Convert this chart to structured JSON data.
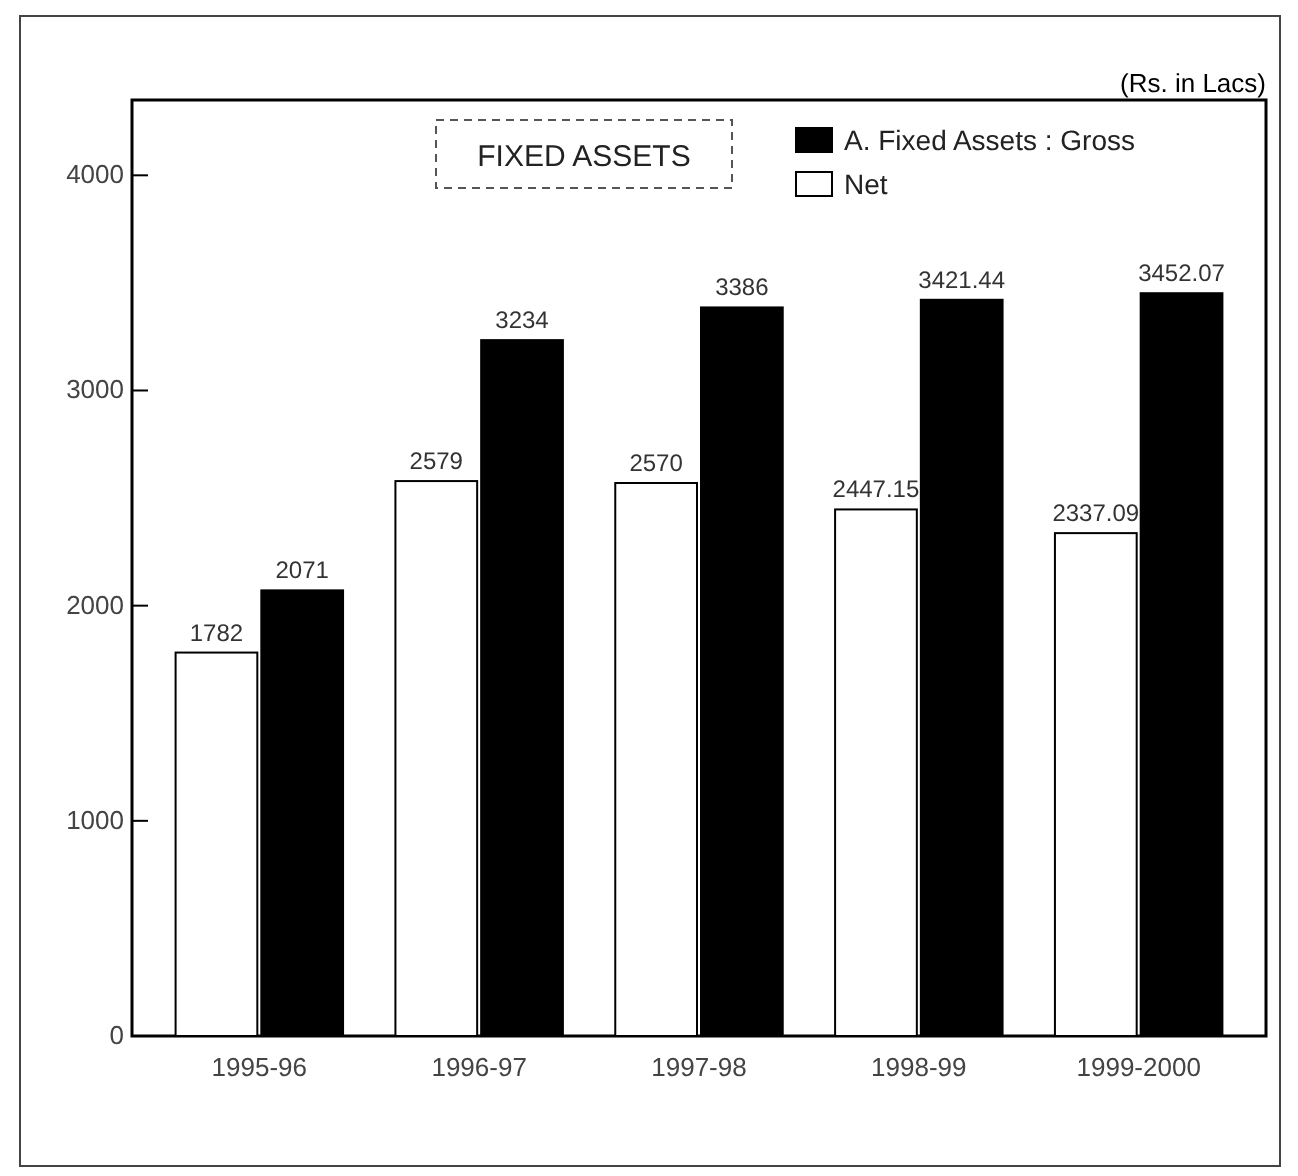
{
  "chart_data": {
    "type": "bar",
    "title": "FIXED ASSETS",
    "annotations": [
      "(Rs. in Lacs)"
    ],
    "categories": [
      "1995-96",
      "1996-97",
      "1997-98",
      "1998-99",
      "1999-2000"
    ],
    "series": [
      {
        "name": "Net",
        "color": "#ffffff",
        "values": [
          1782,
          2579,
          2570,
          2447.15,
          2337.09
        ]
      },
      {
        "name": "A. Fixed Assets : Gross",
        "color": "#000000",
        "values": [
          2071,
          3234,
          3386,
          3421.44,
          3452.07
        ]
      }
    ],
    "ylim": [
      0,
      4350
    ],
    "yticks": [
      0,
      1000,
      2000,
      3000,
      4000
    ],
    "grid": false,
    "legend": "top right",
    "data_labels": true
  }
}
